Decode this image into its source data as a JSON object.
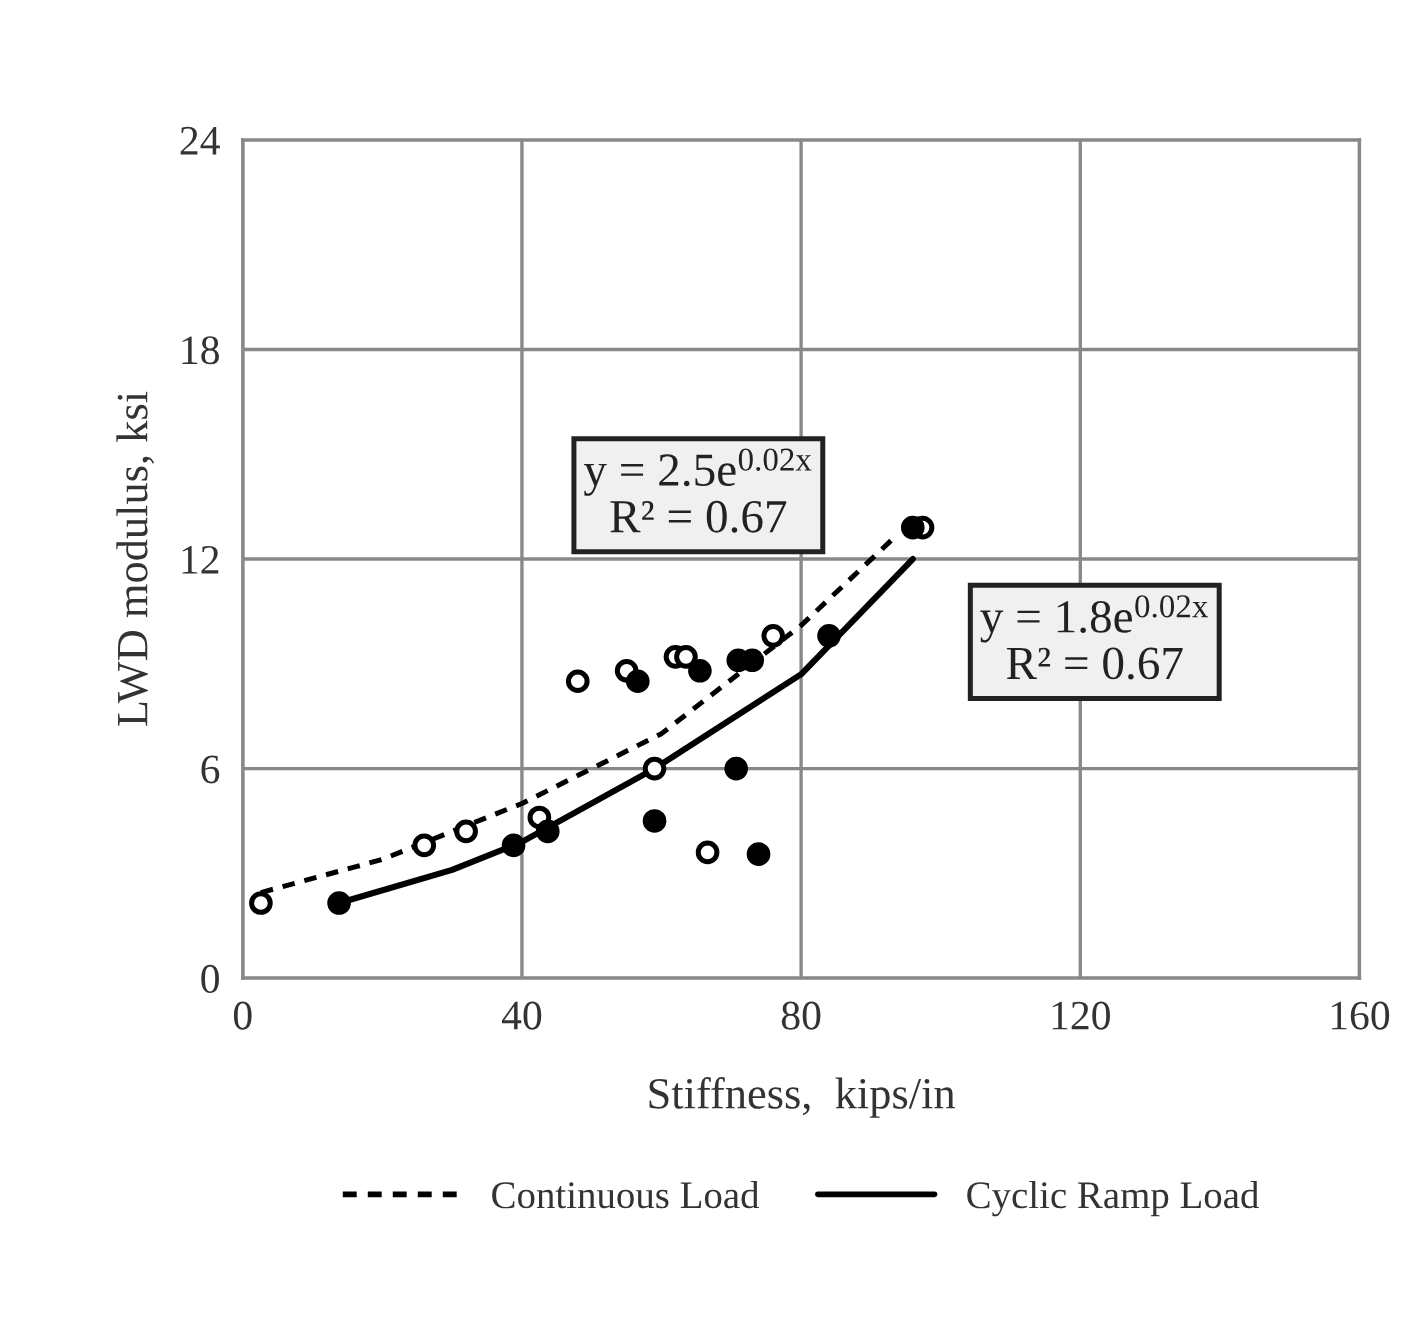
{
  "chart_data": {
    "type": "scatter",
    "xlabel": "Stiffness,  kips/in",
    "ylabel": "LWD modulus, ksi",
    "xlim": [
      0,
      160
    ],
    "xticks": [
      0,
      40,
      80,
      120,
      160
    ],
    "ylim": [
      0,
      24
    ],
    "yticks": [
      0,
      6,
      12,
      18,
      24
    ],
    "grid": true,
    "legend": "bottom",
    "annotations": [
      "y = 2.5e$^{0.02x}$\nR² = 0.67",
      "y = 1.8e$^{0.02x}$\nR² = 0.67"
    ],
    "series": [
      {
        "marker": "circle",
        "color": "#000000",
        "x": [
          2.6,
          26,
          32,
          42.5,
          48,
          55,
          62,
          63.5,
          59,
          66.6,
          76,
          97.4
        ],
        "values": [
          2.15,
          3.8,
          4.2,
          4.6,
          8.5,
          8.8,
          9.2,
          9.2,
          6.0,
          3.6,
          9.8,
          12.9
        ]
      },
      {
        "marker": "circle",
        "color": "#000000",
        "x": [
          13.8,
          38.8,
          43.7,
          56.6,
          65.5,
          59,
          70.7,
          73.9,
          71,
          73,
          84,
          96
        ],
        "values": [
          2.15,
          3.8,
          4.2,
          8.5,
          8.8,
          4.5,
          6.0,
          3.55,
          9.1,
          9.1,
          9.8,
          12.9
        ]
      },
      {
        "type": "line",
        "name": "Continuous Load",
        "color": "#000000",
        "line_style": "dashed",
        "x": [
          2.6,
          20,
          40,
          60,
          80,
          93
        ],
        "values": [
          2.45,
          3.4,
          5.0,
          7.0,
          10.1,
          12.55
        ]
      },
      {
        "type": "line",
        "name": "Cyclic Ramp Load",
        "color": "#000000",
        "line_style": "solid",
        "x": [
          13.8,
          30,
          40,
          59,
          80,
          96
        ],
        "values": [
          2.15,
          3.1,
          3.9,
          6.0,
          8.7,
          12.0
        ]
      }
    ]
  }
}
